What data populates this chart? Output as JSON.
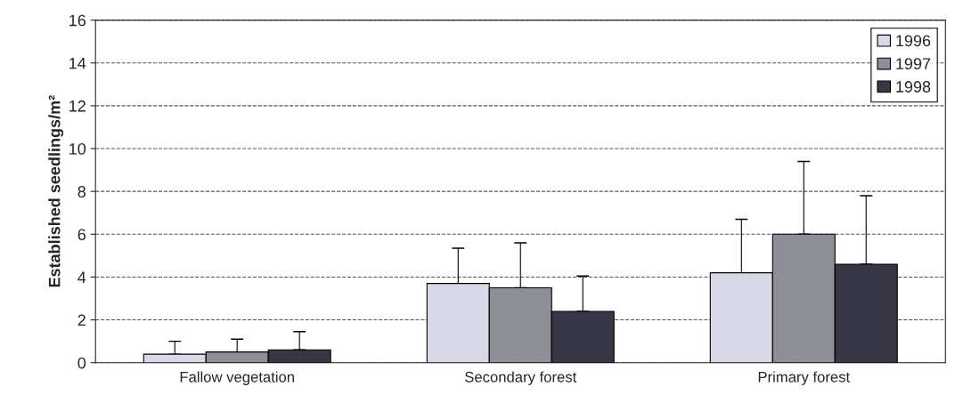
{
  "chart_data": {
    "type": "bar",
    "ylabel": "Established seedlings/m²",
    "categories": [
      "Fallow vegetation",
      "Secondary forest",
      "Primary forest"
    ],
    "series": [
      {
        "name": "1996",
        "color": "#d8d8e6",
        "values": [
          0.4,
          3.7,
          4.2
        ],
        "errors": [
          [
            0.4,
            1.0
          ],
          [
            3.7,
            5.35
          ],
          [
            4.2,
            6.7
          ]
        ]
      },
      {
        "name": "1997",
        "color": "#8e8e96",
        "values": [
          0.5,
          3.5,
          6.0
        ],
        "errors": [
          [
            0.5,
            1.1
          ],
          [
            3.5,
            5.6
          ],
          [
            6.0,
            9.4
          ]
        ]
      },
      {
        "name": "1998",
        "color": "#363644",
        "values": [
          0.6,
          2.4,
          4.6
        ],
        "errors": [
          [
            0.6,
            1.45
          ],
          [
            2.4,
            4.05
          ],
          [
            4.6,
            7.8
          ]
        ]
      }
    ],
    "ylim": [
      0,
      16
    ],
    "yticks": [
      0,
      2,
      4,
      6,
      8,
      10,
      12,
      14,
      16
    ],
    "grid": "y",
    "legend": "top right"
  }
}
